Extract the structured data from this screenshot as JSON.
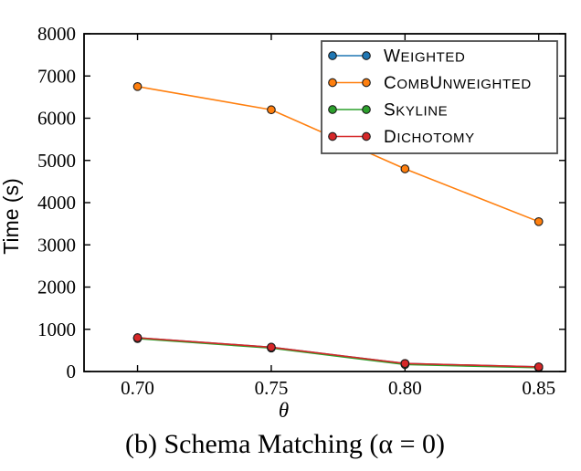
{
  "figure": {
    "caption": "(b) Schema Matching (α = 0)"
  },
  "chart_data": {
    "type": "line",
    "title": "",
    "xlabel": "θ",
    "ylabel": "Time (s)",
    "x": [
      0.7,
      0.75,
      0.8,
      0.85
    ],
    "xtick_labels": [
      "0.70",
      "0.75",
      "0.80",
      "0.85"
    ],
    "yticks": [
      0,
      1000,
      2000,
      3000,
      4000,
      5000,
      6000,
      7000,
      8000
    ],
    "xlim": [
      0.68,
      0.86
    ],
    "ylim": [
      0,
      8000
    ],
    "grid": false,
    "legend_position": "upper right",
    "axis_color": "#000000",
    "marker": "circle",
    "marker_edge_color": "#1a1a1a",
    "series": [
      {
        "name": "Weighted",
        "color": "#1f77b4",
        "values": [
          800,
          575,
          190,
          110
        ]
      },
      {
        "name": "CombUnweighted",
        "color": "#ff7f0e",
        "values": [
          6750,
          6200,
          4800,
          3550
        ]
      },
      {
        "name": "Skyline",
        "color": "#2ca02c",
        "values": [
          780,
          555,
          165,
          90
        ]
      },
      {
        "name": "Dichotomy",
        "color": "#d62728",
        "values": [
          800,
          575,
          190,
          110
        ]
      }
    ]
  }
}
